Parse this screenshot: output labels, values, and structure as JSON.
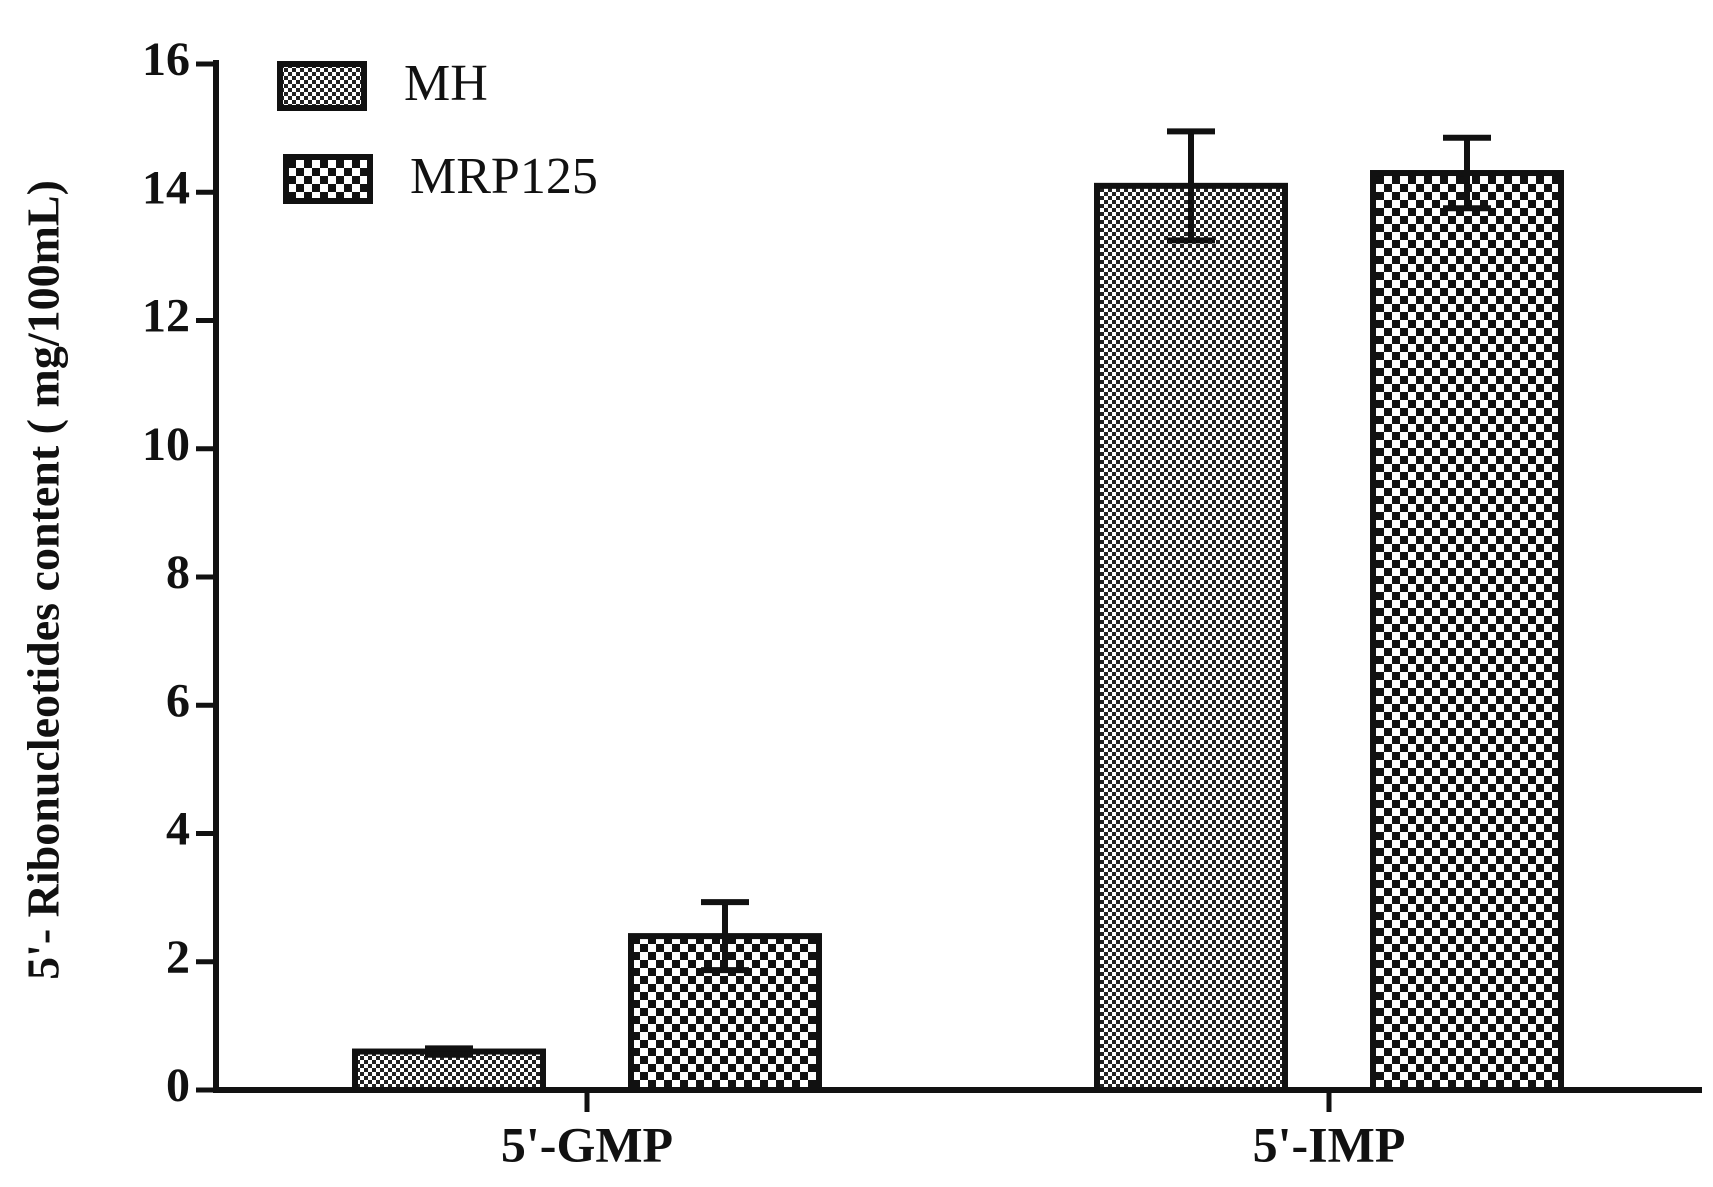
{
  "chart_data": {
    "type": "bar",
    "y_label": "5'- Ribonucleotides content ( mg/100mL)",
    "categories": [
      "5'-GMP",
      "5'-IMP"
    ],
    "series": [
      {
        "name": "MH",
        "pattern": "fine-checker",
        "values": [
          0.6,
          14.1
        ],
        "errors": [
          0.05,
          0.85
        ]
      },
      {
        "name": "MRP125",
        "pattern": "coarse-checker",
        "values": [
          2.4,
          14.3
        ],
        "errors": [
          0.53,
          0.55
        ]
      }
    ],
    "ylim": [
      0,
      16
    ],
    "yticks": [
      0,
      2,
      4,
      6,
      8,
      10,
      12,
      14,
      16
    ],
    "legend": "upper left"
  }
}
